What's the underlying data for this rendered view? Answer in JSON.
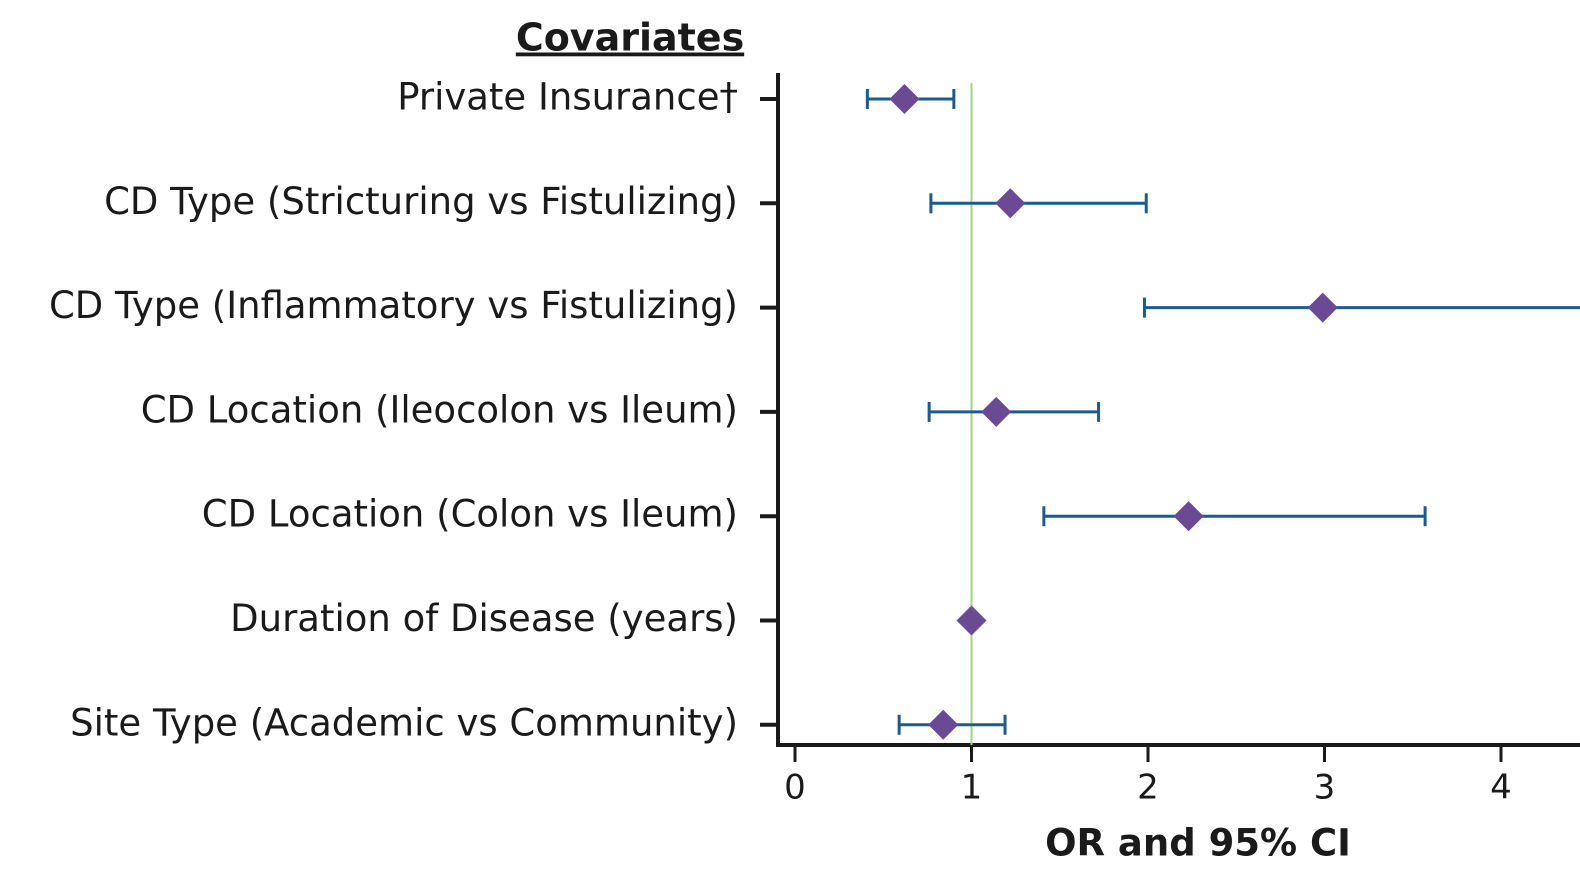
{
  "chart_data": {
    "type": "forest",
    "title": "Covariates",
    "x_label": "OR and 95% CI",
    "categories": [
      "Private Insurance†",
      "CD Type (Stricturing vs Fistulizing)",
      "CD Type (Inflammatory vs Fistulizing)",
      "CD Location (Ileocolon vs Ileum)",
      "CD Location (Colon vs Ileum)",
      "Duration of Disease (years)",
      "Site Type (Academic vs Community)"
    ],
    "values": [
      0.62,
      1.22,
      2.99,
      1.14,
      2.23,
      1.0,
      0.84
    ],
    "lower": [
      0.41,
      0.77,
      1.98,
      0.76,
      1.41,
      null,
      0.59
    ],
    "upper": [
      0.9,
      1.99,
      4.6,
      1.72,
      3.57,
      null,
      1.19
    ],
    "xlim": [
      0,
      4.45
    ],
    "xticks": [
      0,
      1,
      2,
      3,
      4
    ],
    "reference_line": 1,
    "color": "#6b4a94",
    "ci_color": "#1f5a8c",
    "reference_color": "#a6d38a",
    "title_color": "#1f5a8c"
  }
}
